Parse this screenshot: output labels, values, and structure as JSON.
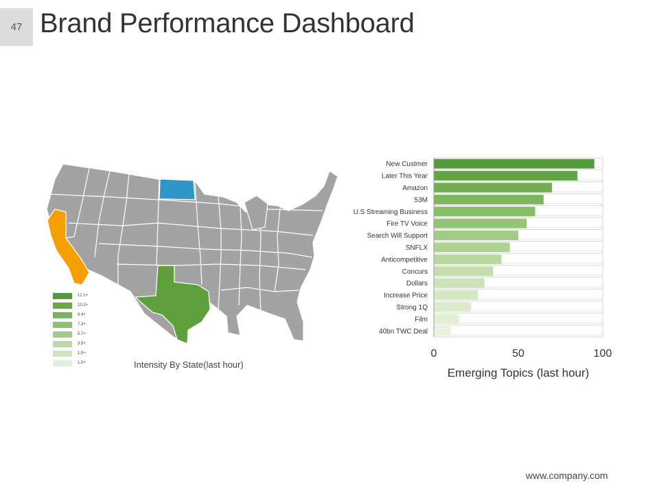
{
  "slide": {
    "number": "47",
    "title": "Brand Performance Dashboard",
    "footer_url": "www.company.com"
  },
  "colors": {
    "california": "#f5a000",
    "north_dakota": "#2e97c7",
    "texas": "#5f9f3c",
    "states_default": "#a3a3a3",
    "state_borders": "#ffffff"
  },
  "map": {
    "caption": "Intensity By State(last hour)",
    "highlighted_states": [
      "California",
      "North Dakota",
      "Texas"
    ],
    "legend": [
      {
        "label": "12.1+",
        "color": "#549a3a"
      },
      {
        "label": "10.2+",
        "color": "#68a848"
      },
      {
        "label": "8.4+",
        "color": "#7ab45b"
      },
      {
        "label": "7.3+",
        "color": "#8fc071"
      },
      {
        "label": "5.7+",
        "color": "#a4cb8c"
      },
      {
        "label": "3.9+",
        "color": "#bad9a8"
      },
      {
        "label": "1.5+",
        "color": "#d1e5c4"
      },
      {
        "label": "1.0+",
        "color": "#e4efdb"
      }
    ]
  },
  "chart_data": {
    "type": "bar",
    "orientation": "horizontal",
    "title": "",
    "xlabel": "Emerging Topics (last hour)",
    "ylabel": "",
    "xlim": [
      0,
      100
    ],
    "xticks": [
      0,
      50,
      100
    ],
    "categories": [
      "New Custmer",
      "Later This Year",
      "Amazon",
      "53M",
      "U.S Streaming Business",
      "Fire TV Voice",
      "Search Will Support",
      "SNFLX",
      "Anticompetitive",
      "Concurs",
      "Dollars",
      "Increase Price",
      "Strong 1Q",
      "Film",
      "40bn TWC Deal"
    ],
    "values": [
      95,
      85,
      70,
      65,
      60,
      55,
      50,
      45,
      40,
      35,
      30,
      26,
      22,
      15,
      10
    ],
    "bar_colors": [
      "#549a3a",
      "#62a544",
      "#71ae52",
      "#7db65d",
      "#88bd69",
      "#95c478",
      "#a1cb86",
      "#add292",
      "#b8d89f",
      "#c3deab",
      "#cbe3b6",
      "#d4e8c1",
      "#dbebcb",
      "#e1efd3",
      "#e8f3dd"
    ],
    "grid": "horizontal lines",
    "legend": "none"
  }
}
